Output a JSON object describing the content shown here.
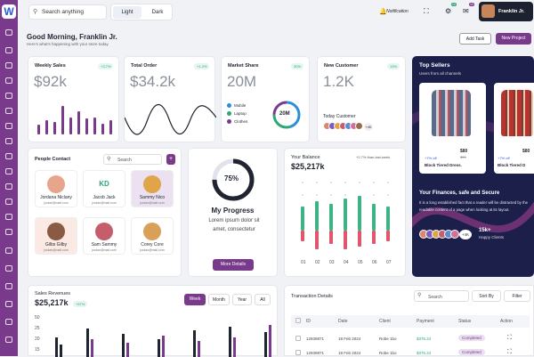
{
  "brand": {
    "logo": "W",
    "accent": "#7a3a8c"
  },
  "topbar": {
    "search_placeholder": "Search anything",
    "theme_light": "Light",
    "theme_dark": "Dark",
    "notification_label": "Notification",
    "settings_badge": "12",
    "mail_badge": "10",
    "user_name": "Franklin Jr."
  },
  "header": {
    "greeting": "Good Morning, Franklin Jr.",
    "subtitle": "Here's what's happening with your store today",
    "add_task": "Add Task",
    "new_project": "New Project"
  },
  "weekly_sales": {
    "title": "Weekly Sales",
    "badge": "+3.7%",
    "value": "$92k",
    "bars": [
      0.3,
      0.45,
      0.4,
      0.9,
      0.55,
      0.75,
      0.5,
      0.55,
      0.35,
      0.45
    ]
  },
  "total_order": {
    "title": "Total Order",
    "badge": "+1.2%",
    "value": "$34.2k"
  },
  "market_share": {
    "title": "Market Share",
    "badge": "30%",
    "value": "20M",
    "legend": [
      "Mobile",
      "Laptop",
      "Clothes"
    ],
    "center": "20M",
    "shares": [
      0.45,
      0.3,
      0.25
    ]
  },
  "new_customer": {
    "title": "New Customer",
    "badge": "13%",
    "value": "1.2K",
    "today": "Today Customer",
    "more": "+4K"
  },
  "top_sellers": {
    "title": "Top Sellers",
    "subtitle": "Users from all channels",
    "items": [
      {
        "price": "$80",
        "old_price": "$99",
        "badge": "+7% off",
        "name": "Block Tiered Dress."
      },
      {
        "price": "$80",
        "badge": "+7% off",
        "name": "Block Tiered D"
      }
    ],
    "fin_title": "Your Finances, safe and Secure",
    "fin_text": "It is a long established fact that a reader will be distracted by the readable content of a page when looking at its layout.",
    "clients_count": "15k+",
    "clients_label": "Happy Clients",
    "avatars_more": "+4K"
  },
  "people": {
    "title": "People Contact",
    "search_placeholder": "Search",
    "add": "+",
    "contacts": [
      {
        "name": "Jordana Niclany",
        "email": "jordan@mail.com",
        "initials": ""
      },
      {
        "name": "Jacob Jack",
        "email": "jordan@mail.com",
        "initials": "KD"
      },
      {
        "name": "Sammy Nico",
        "email": "jordan@mail.com",
        "initials": ""
      },
      {
        "name": "Gilbs Gilby",
        "email": "jordan@mail.com",
        "initials": ""
      },
      {
        "name": "Sam Sammy",
        "email": "jordan@mail.com",
        "initials": ""
      },
      {
        "name": "Corey Core",
        "email": "jordan@mail.com",
        "initials": ""
      }
    ]
  },
  "progress": {
    "percent": "75%",
    "value": 0.75,
    "title": "My Progress",
    "text": "Lorem ipsum dolor sit amet, consectetur",
    "button": "More Details"
  },
  "balance": {
    "title": "Your Balance",
    "value": "$25,217k",
    "change": "+2.7% than last week",
    "xlabels": [
      "01",
      "02",
      "03",
      "04",
      "05",
      "06",
      "07"
    ],
    "up": [
      0.45,
      0.55,
      0.5,
      0.6,
      0.65,
      0.5,
      0.45
    ],
    "down": [
      0.2,
      0.35,
      0.25,
      0.35,
      0.3,
      0.25,
      0.2
    ],
    "colors": {
      "up": "#3bb583",
      "down": "#e0566a"
    }
  },
  "sales_rev": {
    "title": "Sales Revenues",
    "value": "$25,217k",
    "badge": "+57%",
    "tabs": [
      "Week",
      "Month",
      "Year",
      "All"
    ],
    "ylabels": [
      "50",
      "25",
      "20",
      "15"
    ]
  },
  "transactions": {
    "title": "Transaction Details",
    "search_placeholder": "Search",
    "sort": "Sort By",
    "filter": "Filter",
    "columns": [
      "ID",
      "Date",
      "Client",
      "Payment",
      "Status",
      "Action"
    ],
    "rows": [
      {
        "id": "12939871",
        "date": "18 Feb 2024",
        "client": "Robe 1bo",
        "payment": "$376.24",
        "status": "Completed"
      },
      {
        "id": "12939871",
        "date": "18 Feb 2024",
        "client": "Robe 1bo",
        "payment": "$376.24",
        "status": "Completed"
      }
    ]
  }
}
